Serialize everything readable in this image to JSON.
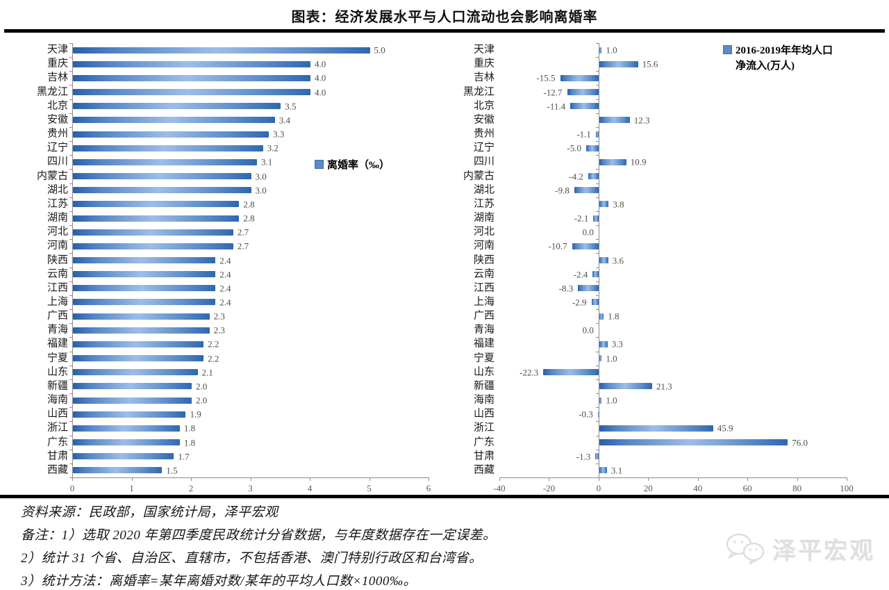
{
  "title": "图表：经济发展水平与人口流动也会影响离婚率",
  "colors": {
    "bar_dark": "#2a5fa9",
    "bar_light": "#9dbde7",
    "legend_square": "#5b8cc5",
    "axis": "#8c8c8c",
    "value_label": "#4d4d4d",
    "tick_label": "#595959"
  },
  "chart_data": [
    {
      "type": "bar",
      "orientation": "horizontal",
      "legend": "离婚率（‰）",
      "legend_lines": [
        "离婚率（‰）"
      ],
      "categories": [
        "天津",
        "重庆",
        "吉林",
        "黑龙江",
        "北京",
        "安徽",
        "贵州",
        "辽宁",
        "四川",
        "内蒙古",
        "湖北",
        "江苏",
        "湖南",
        "河北",
        "河南",
        "陕西",
        "云南",
        "江西",
        "上海",
        "广西",
        "青海",
        "福建",
        "宁夏",
        "山东",
        "新疆",
        "海南",
        "山西",
        "浙江",
        "广东",
        "甘肃",
        "西藏"
      ],
      "values": [
        5.0,
        4.0,
        4.0,
        4.0,
        3.5,
        3.4,
        3.3,
        3.2,
        3.1,
        3.0,
        3.0,
        2.8,
        2.8,
        2.7,
        2.7,
        2.4,
        2.4,
        2.4,
        2.4,
        2.3,
        2.3,
        2.2,
        2.2,
        2.1,
        2.0,
        2.0,
        1.9,
        1.8,
        1.8,
        1.7,
        1.5
      ],
      "xlim": [
        0,
        6
      ],
      "xticks": [
        0,
        1,
        2,
        3,
        4,
        5,
        6
      ],
      "grid": false,
      "legend_position": "center-right"
    },
    {
      "type": "bar",
      "orientation": "horizontal",
      "legend": "2016-2019年年均人口净流入(万人)",
      "legend_lines": [
        "2016-2019年年均人口",
        "净流入(万人)"
      ],
      "categories": [
        "天津",
        "重庆",
        "吉林",
        "黑龙江",
        "北京",
        "安徽",
        "贵州",
        "辽宁",
        "四川",
        "内蒙古",
        "湖北",
        "江苏",
        "湖南",
        "河北",
        "河南",
        "陕西",
        "云南",
        "江西",
        "上海",
        "广西",
        "青海",
        "福建",
        "宁夏",
        "山东",
        "新疆",
        "海南",
        "山西",
        "浙江",
        "广东",
        "甘肃",
        "西藏"
      ],
      "values": [
        1.0,
        15.6,
        -15.5,
        -12.7,
        -11.4,
        12.3,
        -1.1,
        -5.0,
        10.9,
        -4.2,
        -9.8,
        3.8,
        -2.1,
        0.0,
        -10.7,
        3.6,
        -2.4,
        -8.3,
        -2.9,
        1.8,
        0.0,
        3.3,
        1.0,
        -22.3,
        21.3,
        1.0,
        -0.3,
        45.9,
        76.0,
        -1.3,
        3.1
      ],
      "xlim": [
        -40,
        100
      ],
      "xticks": [
        -40,
        -20,
        0,
        20,
        40,
        60,
        80,
        100
      ],
      "grid": false,
      "legend_position": "top-right"
    }
  ],
  "footer": {
    "source": "资料来源：民政部，国家统计局，泽平宏观",
    "note1": "备注：1）选取 2020 年第四季度民政统计分省数据，与年度数据存在一定误差。",
    "note2": "2）统计 31 个省、自治区、直辖市，不包括香港、澳门特别行政区和台湾省。",
    "note3": "3）统计方法：离婚率=某年离婚对数/某年的平均人口数×1000‰。"
  },
  "watermark": {
    "brand": "泽平宏观"
  }
}
